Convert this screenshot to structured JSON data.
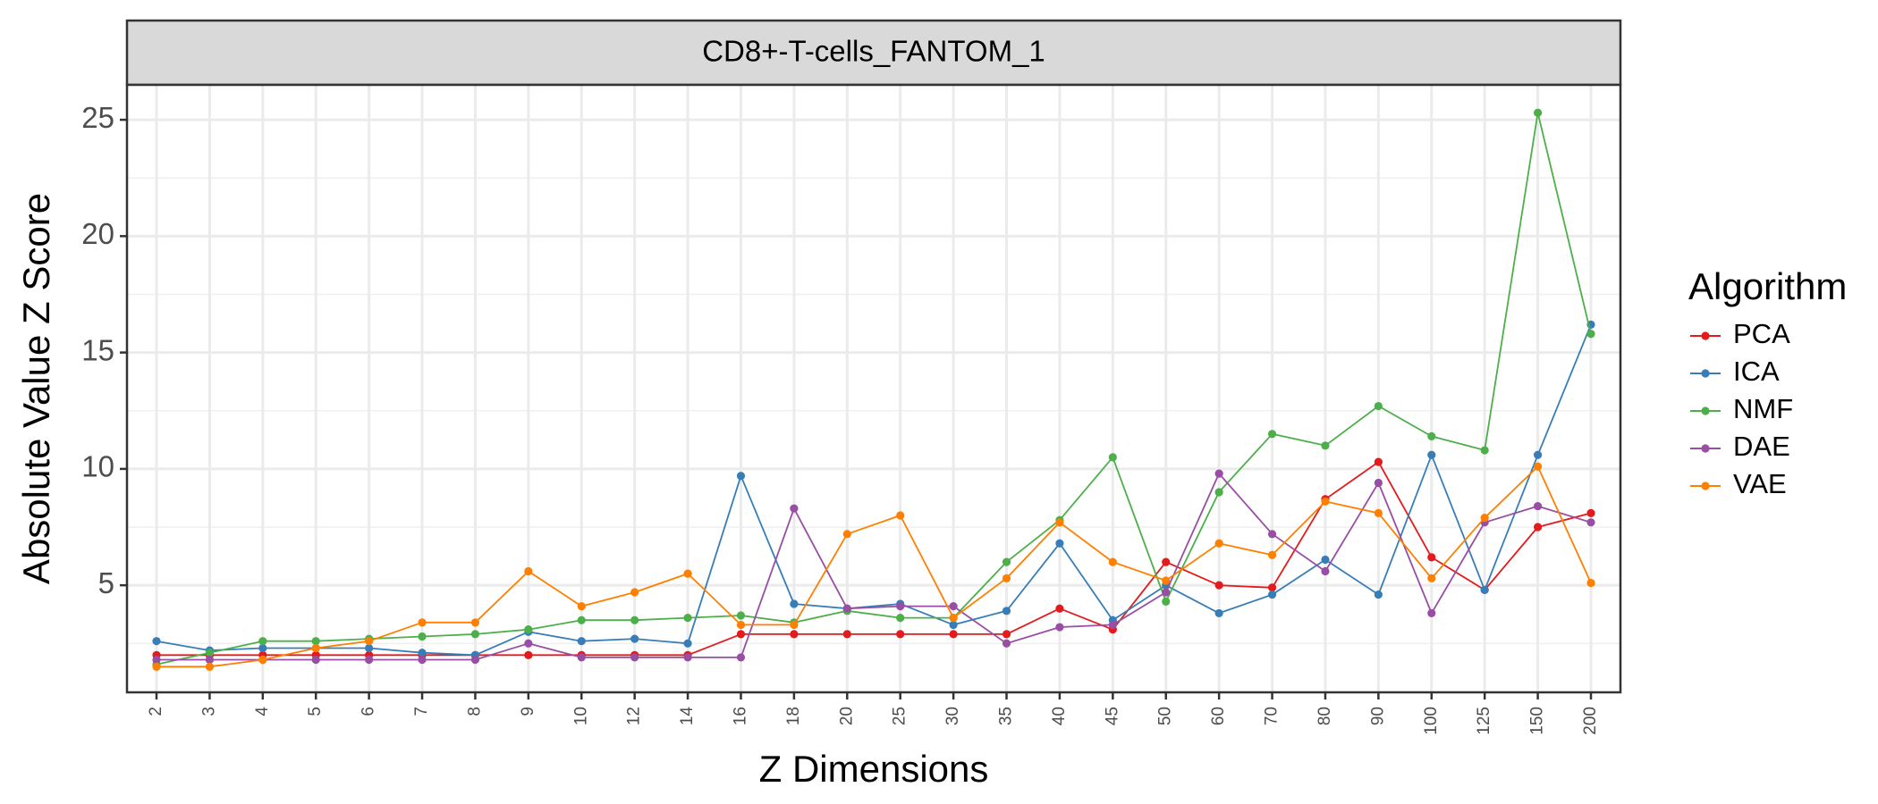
{
  "chart_data": {
    "type": "line",
    "facet_title": "CD8+-T-cells_FANTOM_1",
    "xlabel": "Z Dimensions",
    "ylabel": "Absolute Value Z Score",
    "categories": [
      "2",
      "3",
      "4",
      "5",
      "6",
      "7",
      "8",
      "9",
      "10",
      "12",
      "14",
      "16",
      "18",
      "20",
      "25",
      "30",
      "35",
      "40",
      "45",
      "50",
      "60",
      "70",
      "80",
      "90",
      "100",
      "125",
      "150",
      "200"
    ],
    "ylim": [
      0.4,
      26.5
    ],
    "yticks": [
      5,
      10,
      15,
      20,
      25
    ],
    "grid": true,
    "legend": {
      "title": "Algorithm",
      "position": "right"
    },
    "series": [
      {
        "name": "PCA",
        "color": "#e41a1c",
        "values": [
          2.0,
          2.0,
          2.0,
          2.0,
          2.0,
          2.0,
          2.0,
          2.0,
          2.0,
          2.0,
          2.0,
          2.9,
          2.9,
          2.9,
          2.9,
          2.9,
          2.9,
          4.0,
          3.1,
          6.0,
          5.0,
          4.9,
          8.7,
          10.3,
          6.2,
          4.8,
          7.5,
          8.1
        ]
      },
      {
        "name": "ICA",
        "color": "#377eb8",
        "values": [
          2.6,
          2.2,
          2.3,
          2.3,
          2.3,
          2.1,
          2.0,
          3.0,
          2.6,
          2.7,
          2.5,
          9.7,
          4.2,
          4.0,
          4.2,
          3.3,
          3.9,
          6.8,
          3.5,
          5.0,
          3.8,
          4.6,
          6.1,
          4.6,
          10.6,
          4.8,
          10.6,
          16.2
        ]
      },
      {
        "name": "NMF",
        "color": "#4daf4a",
        "values": [
          1.6,
          2.1,
          2.6,
          2.6,
          2.7,
          2.8,
          2.9,
          3.1,
          3.5,
          3.5,
          3.6,
          3.7,
          3.4,
          3.9,
          3.6,
          3.6,
          6.0,
          7.8,
          10.5,
          4.3,
          9.0,
          11.5,
          11.0,
          12.7,
          11.4,
          10.8,
          25.3,
          15.8
        ]
      },
      {
        "name": "DAE",
        "color": "#984ea3",
        "values": [
          1.8,
          1.8,
          1.8,
          1.8,
          1.8,
          1.8,
          1.8,
          2.5,
          1.9,
          1.9,
          1.9,
          1.9,
          8.3,
          4.0,
          4.1,
          4.1,
          2.5,
          3.2,
          3.3,
          4.7,
          9.8,
          7.2,
          5.6,
          9.4,
          3.8,
          7.7,
          8.4,
          7.7
        ]
      },
      {
        "name": "VAE",
        "color": "#ff7f00",
        "values": [
          1.5,
          1.5,
          1.8,
          2.3,
          2.6,
          3.4,
          3.4,
          5.6,
          4.1,
          4.7,
          5.5,
          3.3,
          3.3,
          7.2,
          8.0,
          3.6,
          5.3,
          7.7,
          6.0,
          5.2,
          6.8,
          6.3,
          8.6,
          8.1,
          5.3,
          7.9,
          10.1,
          5.1
        ]
      }
    ]
  }
}
